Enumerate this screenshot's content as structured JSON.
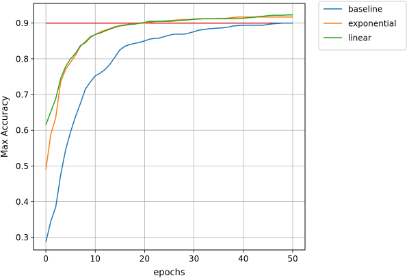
{
  "chart_data": {
    "type": "line",
    "title": "",
    "xlabel": "epochs",
    "ylabel": "Max Accuracy",
    "xlim": [
      -2.5,
      52.5
    ],
    "ylim": [
      0.265,
      0.955
    ],
    "xticks": [
      0,
      10,
      20,
      30,
      40,
      50
    ],
    "yticks": [
      0.3,
      0.4,
      0.5,
      0.6,
      0.7,
      0.8,
      0.9
    ],
    "xtick_labels": [
      "0",
      "10",
      "20",
      "30",
      "40",
      "50"
    ],
    "ytick_labels": [
      "0.3",
      "0.4",
      "0.5",
      "0.6",
      "0.7",
      "0.8",
      "0.9"
    ],
    "grid": true,
    "legend_placement": "outside-top-right",
    "x": [
      0,
      1,
      2,
      3,
      4,
      5,
      6,
      7,
      8,
      9,
      10,
      11,
      12,
      13,
      14,
      15,
      16,
      17,
      18,
      19,
      20,
      21,
      22,
      23,
      24,
      25,
      26,
      27,
      28,
      29,
      30,
      31,
      32,
      33,
      34,
      35,
      36,
      37,
      38,
      39,
      40,
      41,
      42,
      43,
      44,
      45,
      46,
      47,
      48,
      49,
      50
    ],
    "series": [
      {
        "name": "baseline",
        "color": "#1f77b4",
        "values": [
          0.287,
          0.345,
          0.385,
          0.475,
          0.545,
          0.595,
          0.638,
          0.675,
          0.715,
          0.735,
          0.752,
          0.76,
          0.77,
          0.785,
          0.805,
          0.825,
          0.835,
          0.84,
          0.843,
          0.846,
          0.85,
          0.855,
          0.857,
          0.858,
          0.862,
          0.866,
          0.869,
          0.869,
          0.869,
          0.872,
          0.876,
          0.88,
          0.882,
          0.884,
          0.885,
          0.886,
          0.887,
          0.889,
          0.892,
          0.893,
          0.894,
          0.894,
          0.894,
          0.894,
          0.894,
          0.896,
          0.898,
          0.899,
          0.9,
          0.9,
          0.9
        ]
      },
      {
        "name": "exponential",
        "color": "#ff7f0e",
        "values": [
          0.49,
          0.588,
          0.635,
          0.735,
          0.77,
          0.79,
          0.81,
          0.835,
          0.848,
          0.862,
          0.868,
          0.875,
          0.88,
          0.885,
          0.89,
          0.893,
          0.895,
          0.897,
          0.898,
          0.899,
          0.9,
          0.902,
          0.904,
          0.905,
          0.906,
          0.907,
          0.908,
          0.909,
          0.91,
          0.91,
          0.911,
          0.911,
          0.912,
          0.912,
          0.912,
          0.913,
          0.913,
          0.914,
          0.916,
          0.917,
          0.917,
          0.917,
          0.917,
          0.917,
          0.917,
          0.917,
          0.917,
          0.917,
          0.917,
          0.917,
          0.917
        ]
      },
      {
        "name": "linear",
        "color": "#2ca02c",
        "values": [
          0.615,
          0.652,
          0.688,
          0.745,
          0.778,
          0.8,
          0.815,
          0.837,
          0.845,
          0.86,
          0.868,
          0.872,
          0.878,
          0.883,
          0.888,
          0.892,
          0.894,
          0.896,
          0.897,
          0.9,
          0.902,
          0.905,
          0.905,
          0.905,
          0.905,
          0.905,
          0.906,
          0.907,
          0.908,
          0.909,
          0.911,
          0.912,
          0.912,
          0.912,
          0.912,
          0.912,
          0.912,
          0.912,
          0.912,
          0.912,
          0.913,
          0.915,
          0.916,
          0.918,
          0.919,
          0.921,
          0.922,
          0.922,
          0.922,
          0.923,
          0.923
        ]
      }
    ],
    "reference_line": {
      "y": 0.9,
      "color": "#d62728"
    }
  }
}
